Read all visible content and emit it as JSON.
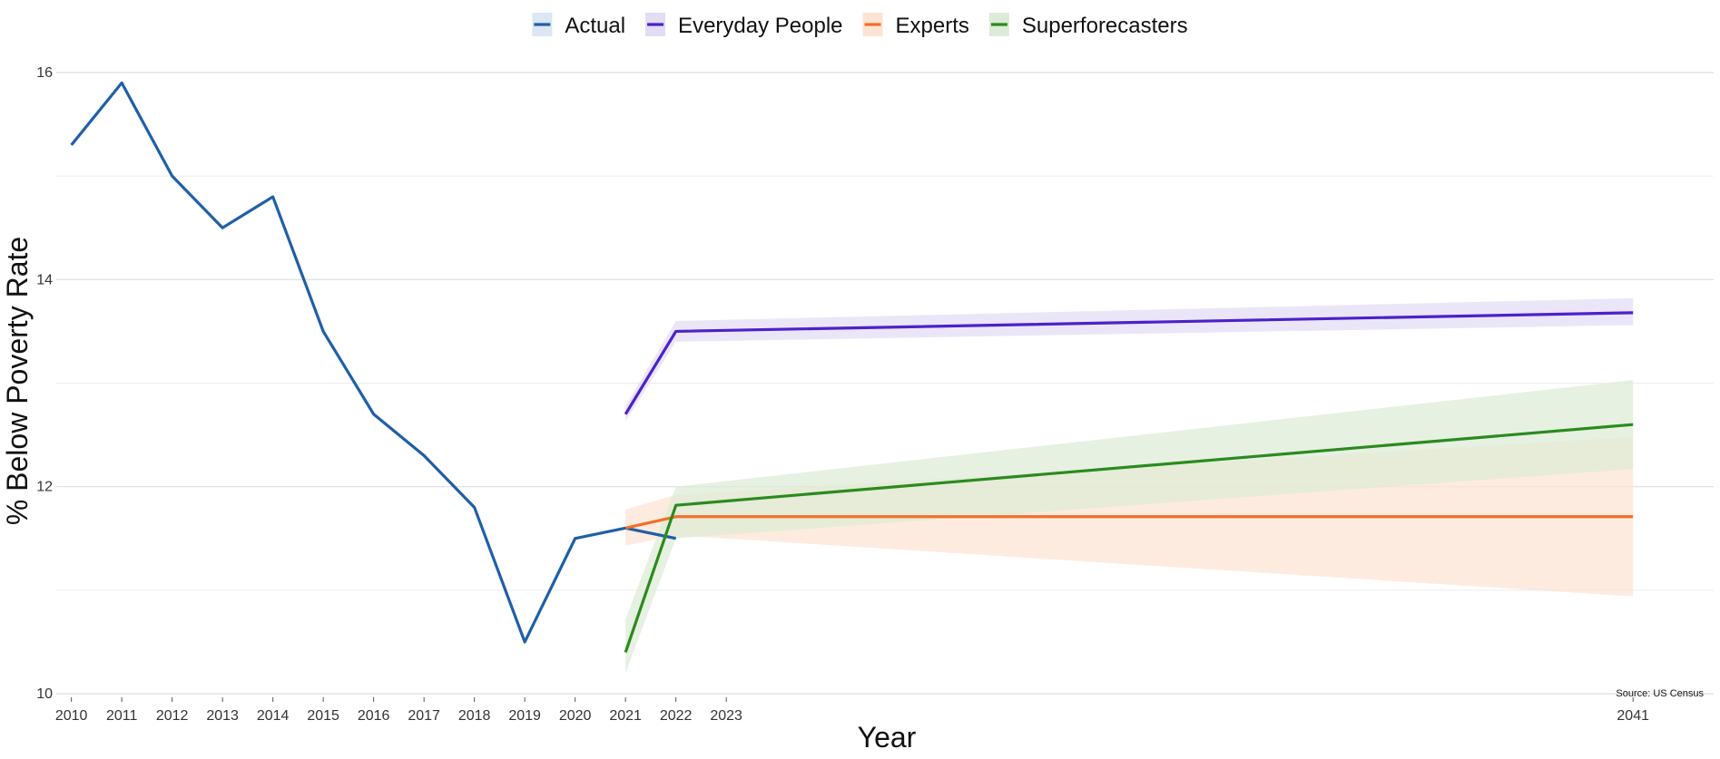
{
  "chart_data": {
    "type": "line",
    "xlabel": "Year",
    "ylabel": "% Below Poverty Rate",
    "source": "Source: US Census",
    "xlim": [
      2009.7,
      2042.6
    ],
    "ylim": [
      10,
      16
    ],
    "x_ticks": [
      2010,
      2011,
      2012,
      2013,
      2014,
      2015,
      2016,
      2017,
      2018,
      2019,
      2020,
      2021,
      2022,
      2023,
      2041
    ],
    "y_ticks": [
      10,
      12,
      14,
      16
    ],
    "grid": true,
    "legend_position": "top",
    "series": [
      {
        "name": "Actual",
        "color": "#1f5fa8",
        "fill": "#dce6f5",
        "x": [
          2010,
          2011,
          2012,
          2013,
          2014,
          2015,
          2016,
          2017,
          2018,
          2019,
          2020,
          2021,
          2022
        ],
        "values": [
          15.3,
          15.9,
          15.0,
          14.5,
          14.8,
          13.5,
          12.7,
          12.3,
          11.8,
          10.5,
          11.5,
          11.6,
          11.5
        ]
      },
      {
        "name": "Everyday People",
        "color": "#4b22c9",
        "fill": "#e2dcf5",
        "x": [
          2021,
          2022,
          2041
        ],
        "values": [
          12.7,
          13.5,
          13.68
        ],
        "lower": [
          12.63,
          13.4,
          13.56
        ],
        "upper": [
          12.78,
          13.6,
          13.82
        ]
      },
      {
        "name": "Experts",
        "color": "#f07028",
        "fill": "#fde3d3",
        "x": [
          2021,
          2022,
          2041
        ],
        "values": [
          11.6,
          11.71,
          11.71
        ],
        "lower": [
          11.43,
          11.53,
          10.94
        ],
        "upper": [
          11.78,
          11.92,
          12.48
        ]
      },
      {
        "name": "Superforecasters",
        "color": "#2b8a1e",
        "fill": "#dcebd6",
        "x": [
          2021,
          2022,
          2041
        ],
        "values": [
          10.4,
          11.82,
          12.6
        ],
        "lower": [
          10.2,
          11.5,
          12.17
        ],
        "upper": [
          10.72,
          12.0,
          13.03
        ]
      }
    ]
  }
}
